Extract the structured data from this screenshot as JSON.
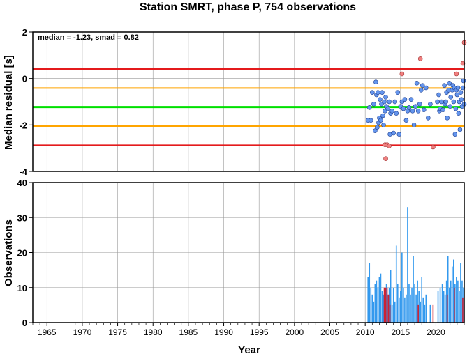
{
  "title": "Station SMRT, phase P, 754 observations",
  "chart_data": [
    {
      "type": "scatter",
      "ylabel": "Median residual [s]",
      "annotation": "median = -1.23, smad = 0.82",
      "xlim": [
        1963,
        2024
      ],
      "ylim": [
        -4,
        2
      ],
      "yticks": [
        2,
        0,
        -2,
        -4
      ],
      "grid": true,
      "median": -1.23,
      "hlines": [
        {
          "value": 0.41,
          "color": "#e41a1c"
        },
        {
          "value": -0.41,
          "color": "#ffa500"
        },
        {
          "value": -1.23,
          "color": "#00e000"
        },
        {
          "value": -2.05,
          "color": "#ffa500"
        },
        {
          "value": -2.87,
          "color": "#e41a1c"
        }
      ],
      "inlier_color": "#6495ed",
      "outlier_color": "#f08080",
      "points": [
        [
          2010.4,
          -1.8
        ],
        [
          2010.6,
          -1.25
        ],
        [
          2010.8,
          -1.8
        ],
        [
          2011.0,
          -0.6
        ],
        [
          2011.2,
          -1.1
        ],
        [
          2011.4,
          -2.25
        ],
        [
          2011.5,
          -0.15
        ],
        [
          2011.6,
          -0.7
        ],
        [
          2011.7,
          -2.1
        ],
        [
          2011.8,
          -0.6
        ],
        [
          2011.9,
          -1.9
        ],
        [
          2012.0,
          -1.7
        ],
        [
          2012.1,
          -0.9
        ],
        [
          2012.2,
          -1.8
        ],
        [
          2012.3,
          -1.1
        ],
        [
          2012.4,
          -0.6
        ],
        [
          2012.5,
          -1.6
        ],
        [
          2012.6,
          -2.0
        ],
        [
          2012.7,
          -1.0
        ],
        [
          2012.8,
          -1.4
        ],
        [
          2012.9,
          -0.8
        ],
        [
          2013.0,
          -1.2
        ],
        [
          2013.2,
          -1.3
        ],
        [
          2013.4,
          -1.0
        ],
        [
          2013.5,
          -2.4
        ],
        [
          2013.6,
          -1.5
        ],
        [
          2013.8,
          -1.4
        ],
        [
          2014.0,
          -2.35
        ],
        [
          2014.2,
          -1.0
        ],
        [
          2014.4,
          -1.5
        ],
        [
          2014.6,
          -0.6
        ],
        [
          2014.8,
          -2.4
        ],
        [
          2015.0,
          -1.2
        ],
        [
          2015.2,
          -1.0
        ],
        [
          2015.4,
          -1.3
        ],
        [
          2015.6,
          -0.9
        ],
        [
          2015.8,
          -1.8
        ],
        [
          2016.0,
          -1.4
        ],
        [
          2016.2,
          -1.25
        ],
        [
          2016.5,
          -0.9
        ],
        [
          2016.7,
          -1.4
        ],
        [
          2016.9,
          -2.0
        ],
        [
          2017.1,
          -1.2
        ],
        [
          2017.3,
          -0.2
        ],
        [
          2017.5,
          -1.4
        ],
        [
          2017.7,
          -1.1
        ],
        [
          2017.9,
          -0.5
        ],
        [
          2018.1,
          -0.3
        ],
        [
          2018.3,
          -1.35
        ],
        [
          2018.6,
          -0.4
        ],
        [
          2018.9,
          -1.7
        ],
        [
          2019.2,
          -1.1
        ],
        [
          2020.2,
          -1.0
        ],
        [
          2020.4,
          -0.7
        ],
        [
          2020.5,
          -1.4
        ],
        [
          2020.6,
          -1.3
        ],
        [
          2020.8,
          -1.0
        ],
        [
          2021.0,
          -1.35
        ],
        [
          2021.2,
          -0.3
        ],
        [
          2021.3,
          -1.1
        ],
        [
          2021.4,
          -1.0
        ],
        [
          2021.5,
          -0.6
        ],
        [
          2021.6,
          -1.7
        ],
        [
          2021.8,
          -0.5
        ],
        [
          2021.9,
          -0.2
        ],
        [
          2022.0,
          -1.2
        ],
        [
          2022.1,
          -0.8
        ],
        [
          2022.3,
          -0.5
        ],
        [
          2022.4,
          -0.3
        ],
        [
          2022.5,
          -1.0
        ],
        [
          2022.6,
          -0.4
        ],
        [
          2022.7,
          -2.4
        ],
        [
          2022.8,
          -1.3
        ],
        [
          2022.9,
          -0.5
        ],
        [
          2023.0,
          -0.7
        ],
        [
          2023.1,
          -0.4
        ],
        [
          2023.2,
          -1.5
        ],
        [
          2023.3,
          -1.0
        ],
        [
          2023.4,
          -2.2
        ],
        [
          2023.5,
          -0.6
        ],
        [
          2023.6,
          -0.9
        ],
        [
          2023.7,
          -1.2
        ],
        [
          2023.8,
          -0.4
        ],
        [
          2023.9,
          -0.1
        ],
        [
          2024.0,
          -1.1
        ]
      ],
      "outliers": [
        [
          2012.8,
          -2.85
        ],
        [
          2012.9,
          -3.45
        ],
        [
          2013.1,
          -2.85
        ],
        [
          2013.4,
          -2.9
        ],
        [
          2015.2,
          0.2
        ],
        [
          2017.8,
          0.85
        ],
        [
          2019.6,
          -2.95
        ],
        [
          2022.9,
          0.2
        ],
        [
          2023.8,
          0.65
        ],
        [
          2024.0,
          1.55
        ]
      ]
    },
    {
      "type": "bar",
      "xlabel": "Year",
      "ylabel": "Observations",
      "xlim": [
        1963,
        2024
      ],
      "ylim": [
        0,
        40
      ],
      "yticks": [
        0,
        10,
        20,
        30,
        40
      ],
      "xticks": [
        1965,
        1970,
        1975,
        1980,
        1985,
        1990,
        1995,
        2000,
        2005,
        2010,
        2015,
        2020
      ],
      "grid": true,
      "bar_color": "#3399ee",
      "outlier_bar_color": "#cc2233",
      "bars": [
        [
          2010.4,
          13
        ],
        [
          2010.6,
          17
        ],
        [
          2010.8,
          10
        ],
        [
          2011.0,
          8
        ],
        [
          2011.2,
          6
        ],
        [
          2011.4,
          11
        ],
        [
          2011.6,
          12
        ],
        [
          2011.8,
          10
        ],
        [
          2012.0,
          13
        ],
        [
          2012.2,
          14
        ],
        [
          2012.4,
          9
        ],
        [
          2012.6,
          8
        ],
        [
          2012.8,
          10
        ],
        [
          2013.0,
          11
        ],
        [
          2013.2,
          8
        ],
        [
          2013.4,
          10
        ],
        [
          2013.6,
          15
        ],
        [
          2013.8,
          5
        ],
        [
          2014.0,
          10
        ],
        [
          2014.2,
          6
        ],
        [
          2014.4,
          22
        ],
        [
          2014.6,
          11
        ],
        [
          2014.8,
          7
        ],
        [
          2015.0,
          9
        ],
        [
          2015.2,
          20
        ],
        [
          2015.4,
          10
        ],
        [
          2015.6,
          7
        ],
        [
          2015.8,
          8
        ],
        [
          2016.0,
          33
        ],
        [
          2016.2,
          11
        ],
        [
          2016.4,
          8
        ],
        [
          2016.6,
          10
        ],
        [
          2016.8,
          19
        ],
        [
          2017.0,
          11
        ],
        [
          2017.2,
          8
        ],
        [
          2017.4,
          12
        ],
        [
          2017.6,
          9
        ],
        [
          2017.8,
          6
        ],
        [
          2018.0,
          13
        ],
        [
          2018.2,
          7
        ],
        [
          2018.4,
          5
        ],
        [
          2018.6,
          8
        ],
        [
          2019.2,
          5
        ],
        [
          2020.3,
          9
        ],
        [
          2020.6,
          10
        ],
        [
          2020.9,
          11
        ],
        [
          2021.1,
          9
        ],
        [
          2021.3,
          8
        ],
        [
          2021.5,
          12
        ],
        [
          2021.7,
          19
        ],
        [
          2021.9,
          10
        ],
        [
          2022.1,
          12
        ],
        [
          2022.3,
          16
        ],
        [
          2022.5,
          18
        ],
        [
          2022.7,
          11
        ],
        [
          2022.9,
          13
        ],
        [
          2023.1,
          12
        ],
        [
          2023.3,
          9
        ],
        [
          2023.5,
          17
        ],
        [
          2023.7,
          12
        ],
        [
          2023.9,
          10
        ]
      ],
      "outlier_bars": [
        [
          2012.7,
          10
        ],
        [
          2012.9,
          10
        ],
        [
          2013.1,
          10
        ],
        [
          2013.3,
          8
        ],
        [
          2013.5,
          5
        ],
        [
          2017.5,
          5
        ],
        [
          2019.6,
          5
        ],
        [
          2021.6,
          8
        ],
        [
          2022.6,
          10
        ],
        [
          2023.8,
          7
        ]
      ]
    }
  ]
}
